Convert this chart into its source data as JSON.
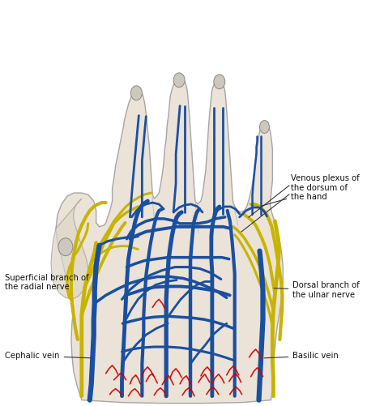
{
  "background_color": "#ffffff",
  "vein_color": "#1a4fa0",
  "nerve_color": "#c8b400",
  "artery_color": "#cc0000",
  "skin_color": "#e8dfd0",
  "outline_color": "#888888",
  "label_fontsize": 7.2,
  "figsize": [
    4.74,
    5.01
  ],
  "dpi": 100,
  "labels": {
    "venous_plexus": "Venous plexus of\nthe dorsum of\nthe hand",
    "superficial_radial": "Superficial branch of\nthe radial nerve",
    "dorsal_ulnar": "Dorsal branch of\nthe ulnar nerve",
    "cephalic_vein": "Cephalic vein",
    "basilic_vein": "Basilic vein"
  }
}
